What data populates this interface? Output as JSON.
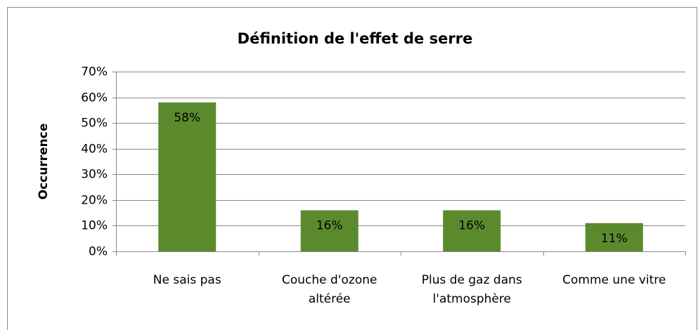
{
  "chart_data": {
    "type": "bar",
    "title": "Définition de l'effet de serre",
    "y_label": "Occurrence",
    "categories": [
      "Ne sais pas",
      "Couche d'ozone altérée",
      "Plus de gaz dans l'atmosphère",
      "Comme une vitre"
    ],
    "values": [
      58,
      16,
      16,
      11
    ],
    "value_labels": [
      "58%",
      "16%",
      "16%",
      "11%"
    ],
    "color": "#5b8a2d",
    "ylim": [
      0,
      70
    ],
    "yticks": [
      {
        "value": 0,
        "label": "0%"
      },
      {
        "value": 10,
        "label": "10%"
      },
      {
        "value": 20,
        "label": "20%"
      },
      {
        "value": 30,
        "label": "30%"
      },
      {
        "value": 40,
        "label": "40%"
      },
      {
        "value": 50,
        "label": "50%"
      },
      {
        "value": 60,
        "label": "60%"
      },
      {
        "value": 70,
        "label": "70%"
      }
    ],
    "grid": true
  }
}
